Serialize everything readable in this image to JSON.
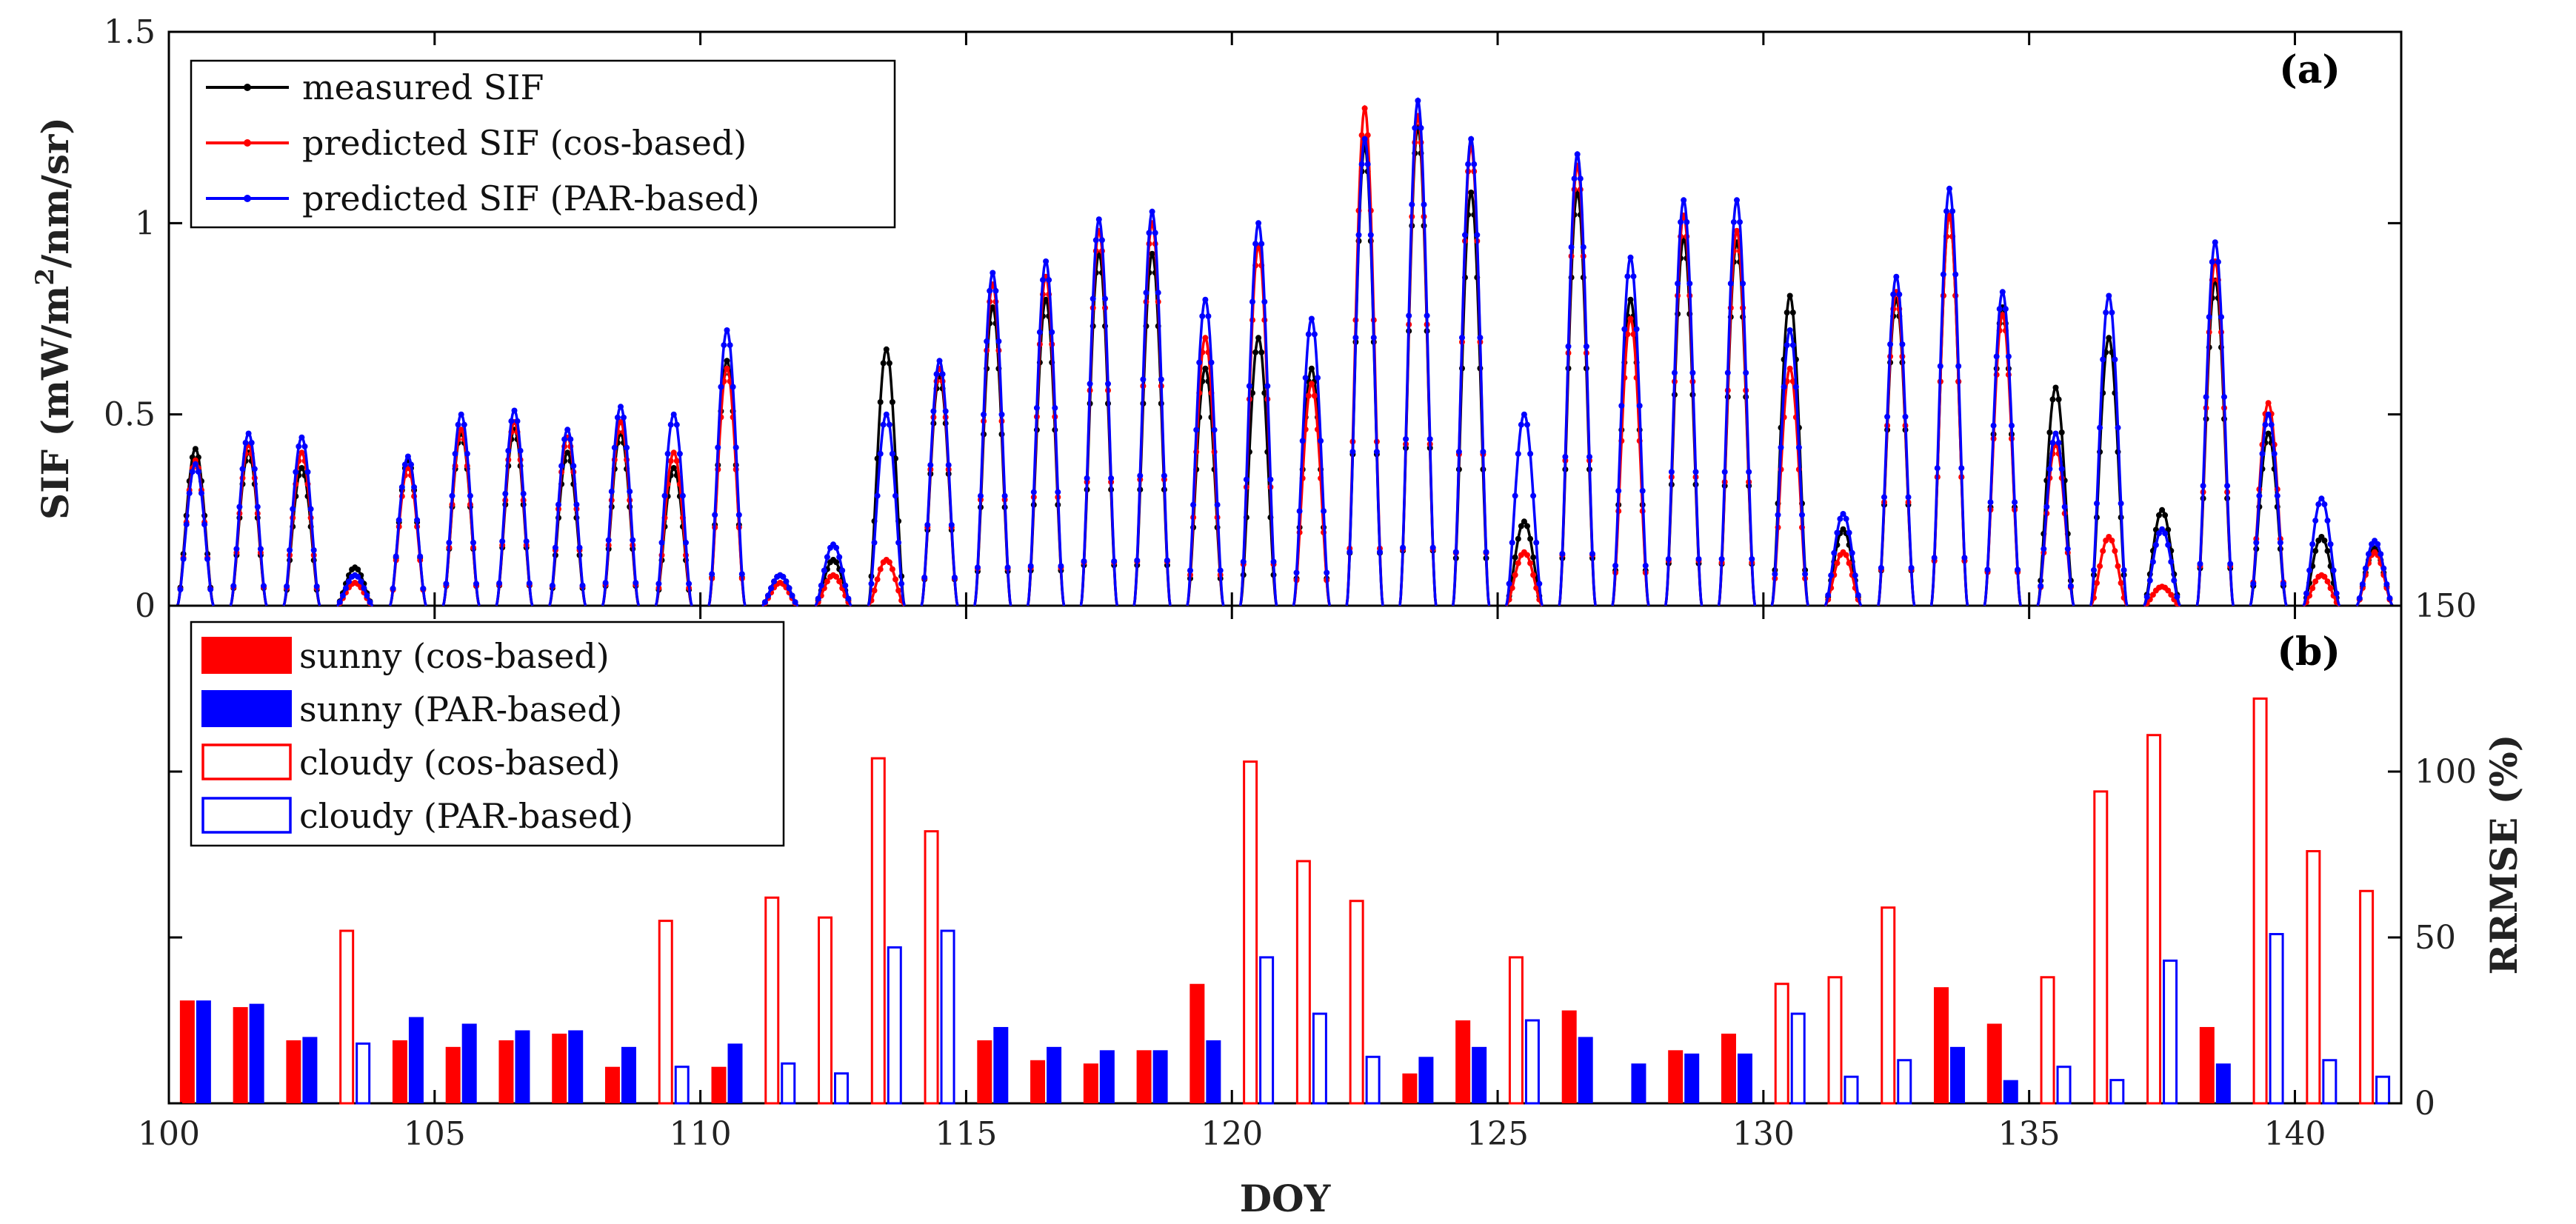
{
  "colors": {
    "measured": "#000000",
    "cos": "#ff0000",
    "par": "#0000ff"
  },
  "chart_data": [
    {
      "type": "line",
      "panel_label": "(a)",
      "xlabel": "",
      "ylabel": "SIF (mW/m²/nm/sr)",
      "ylabel_parts": {
        "pre": "SIF (mW/m",
        "sup": "2",
        "post": "/nm/sr)"
      },
      "xlim": [
        100,
        142
      ],
      "ylim": [
        0,
        1.5
      ],
      "yticks": [
        0,
        0.5,
        1,
        1.5
      ],
      "ytick_labels": [
        "0",
        "0.5",
        "1",
        "1.5"
      ],
      "grid": false,
      "legend_position": "top-left",
      "legend": [
        "measured SIF",
        "predicted SIF (cos-based)",
        "predicted SIF (PAR-based)"
      ],
      "note": "Diurnal SIF peaks per day (DOY); each day is a bell-shaped curve, values below are daily peak maxima",
      "days": [
        100.5,
        101.5,
        102.5,
        103.5,
        104.5,
        105.5,
        106.5,
        107.5,
        108.5,
        109.5,
        110.5,
        111.5,
        112.5,
        113.5,
        114.5,
        115.5,
        116.5,
        117.5,
        118.5,
        119.5,
        120.5,
        121.5,
        122.5,
        123.5,
        124.5,
        125.5,
        126.5,
        127.5,
        128.5,
        129.5,
        130.5,
        131.5,
        132.5,
        133.5,
        134.5,
        135.5,
        136.5,
        137.5,
        138.5,
        139.5,
        140.5,
        141.5
      ],
      "series": [
        {
          "name": "measured SIF",
          "peaks": [
            0.41,
            0.4,
            0.36,
            0.1,
            0.38,
            0.45,
            0.46,
            0.4,
            0.45,
            0.36,
            0.64,
            0.08,
            0.12,
            0.67,
            0.6,
            0.78,
            0.8,
            0.92,
            0.92,
            0.62,
            0.7,
            0.62,
            1.2,
            1.25,
            1.08,
            0.22,
            1.08,
            0.8,
            0.96,
            0.95,
            0.81,
            0.2,
            0.8,
            1.02,
            0.78,
            0.57,
            0.7,
            0.25,
            0.85,
            0.45,
            0.18,
            0.15
          ]
        },
        {
          "name": "predicted SIF (cos-based)",
          "peaks": [
            0.38,
            0.42,
            0.4,
            0.06,
            0.36,
            0.46,
            0.48,
            0.44,
            0.48,
            0.4,
            0.62,
            0.06,
            0.08,
            0.12,
            0.62,
            0.84,
            0.86,
            0.98,
            1.0,
            0.7,
            0.94,
            0.58,
            1.3,
            1.28,
            1.2,
            0.14,
            1.15,
            0.75,
            1.02,
            0.98,
            0.62,
            0.14,
            0.82,
            1.02,
            0.76,
            0.42,
            0.18,
            0.05,
            0.9,
            0.53,
            0.08,
            0.14
          ]
        },
        {
          "name": "predicted SIF (PAR-based)",
          "peaks": [
            0.37,
            0.45,
            0.44,
            0.08,
            0.39,
            0.5,
            0.51,
            0.46,
            0.52,
            0.5,
            0.72,
            0.08,
            0.16,
            0.5,
            0.64,
            0.87,
            0.9,
            1.01,
            1.03,
            0.8,
            1.0,
            0.75,
            1.22,
            1.32,
            1.22,
            0.5,
            1.18,
            0.91,
            1.06,
            1.06,
            0.72,
            0.24,
            0.86,
            1.09,
            0.82,
            0.45,
            0.81,
            0.2,
            0.95,
            0.5,
            0.28,
            0.17
          ]
        }
      ]
    },
    {
      "type": "bar",
      "panel_label": "(b)",
      "xlabel": "DOY",
      "ylabel": "RRMSE (%)",
      "xlim": [
        100,
        142
      ],
      "ylim": [
        0,
        150
      ],
      "yticks": [
        0,
        50,
        100,
        150
      ],
      "ytick_labels": [
        "0",
        "50",
        "100",
        "150"
      ],
      "xticks": [
        100,
        105,
        110,
        115,
        120,
        125,
        130,
        135,
        140
      ],
      "xtick_labels": [
        "100",
        "105",
        "110",
        "115",
        "120",
        "125",
        "130",
        "135",
        "140"
      ],
      "grid": false,
      "legend_position": "top-left",
      "legend": [
        "sunny (cos-based)",
        "sunny (PAR-based)",
        "cloudy (cos-based)",
        "cloudy (PAR-based)"
      ],
      "days": [
        100.5,
        101.5,
        102.5,
        103.5,
        104.5,
        105.5,
        106.5,
        107.5,
        108.5,
        109.5,
        110.5,
        111.5,
        112.5,
        113.5,
        114.5,
        115.5,
        116.5,
        117.5,
        118.5,
        119.5,
        120.5,
        121.5,
        122.5,
        123.5,
        124.5,
        125.5,
        126.5,
        127.5,
        128.5,
        129.5,
        130.5,
        131.5,
        132.5,
        133.5,
        134.5,
        135.5,
        136.5,
        137.5,
        138.5,
        139.5,
        140.5,
        141.5
      ],
      "condition": [
        "sunny",
        "sunny",
        "sunny",
        "cloudy",
        "sunny",
        "sunny",
        "sunny",
        "sunny",
        "sunny",
        "cloudy",
        "sunny",
        "cloudy",
        "cloudy",
        "cloudy",
        "cloudy",
        "sunny",
        "sunny",
        "sunny",
        "sunny",
        "sunny",
        "cloudy",
        "cloudy",
        "cloudy",
        "sunny",
        "sunny",
        "cloudy",
        "sunny",
        "sunny",
        "sunny",
        "sunny",
        "cloudy",
        "cloudy",
        "cloudy",
        "sunny",
        "sunny",
        "cloudy",
        "cloudy",
        "cloudy",
        "sunny",
        "cloudy",
        "cloudy",
        "cloudy"
      ],
      "series": [
        {
          "name": "cos-based",
          "values": [
            31,
            29,
            19,
            52,
            19,
            17,
            19,
            21,
            11,
            55,
            11,
            62,
            56,
            104,
            82,
            19,
            13,
            12,
            16,
            36,
            103,
            73,
            61,
            9,
            25,
            44,
            28,
            0,
            16,
            21,
            36,
            38,
            59,
            35,
            24,
            38,
            94,
            111,
            23,
            122,
            76,
            64
          ]
        },
        {
          "name": "PAR-based",
          "values": [
            31,
            30,
            20,
            18,
            26,
            24,
            22,
            22,
            17,
            11,
            18,
            12,
            9,
            47,
            52,
            23,
            17,
            16,
            16,
            19,
            44,
            27,
            14,
            14,
            17,
            25,
            20,
            12,
            15,
            15,
            27,
            8,
            13,
            17,
            7,
            11,
            7,
            43,
            12,
            51,
            13,
            8
          ]
        }
      ]
    }
  ]
}
